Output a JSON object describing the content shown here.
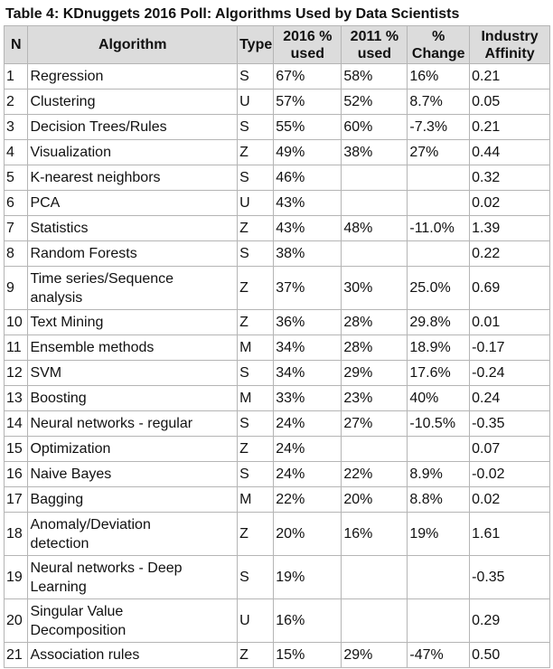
{
  "title": "Table 4: KDnuggets 2016 Poll: Algorithms Used by Data Scientists",
  "headers": {
    "n": "N",
    "algorithm": "Algorithm",
    "type": "Type",
    "used_2016": [
      "2016 %",
      "used"
    ],
    "used_2011": [
      "2011 %",
      "used"
    ],
    "change": [
      "%",
      "Change"
    ],
    "affinity": [
      "Industry",
      "Affinity"
    ]
  },
  "rows": [
    {
      "n": "1",
      "algorithm": [
        "Regression"
      ],
      "type": "S",
      "used_2016": "67%",
      "used_2011": "58%",
      "change": "16%",
      "affinity": "0.21"
    },
    {
      "n": "2",
      "algorithm": [
        "Clustering"
      ],
      "type": "U",
      "used_2016": "57%",
      "used_2011": "52%",
      "change": "8.7%",
      "affinity": "0.05"
    },
    {
      "n": "3",
      "algorithm": [
        "Decision Trees/Rules"
      ],
      "type": "S",
      "used_2016": "55%",
      "used_2011": "60%",
      "change": "-7.3%",
      "affinity": "0.21"
    },
    {
      "n": "4",
      "algorithm": [
        "Visualization"
      ],
      "type": "Z",
      "used_2016": "49%",
      "used_2011": "38%",
      "change": "27%",
      "affinity": "0.44"
    },
    {
      "n": "5",
      "algorithm": [
        "K-nearest neighbors"
      ],
      "type": "S",
      "used_2016": "46%",
      "used_2011": "",
      "change": "",
      "affinity": "0.32"
    },
    {
      "n": "6",
      "algorithm": [
        "PCA"
      ],
      "type": "U",
      "used_2016": "43%",
      "used_2011": "",
      "change": "",
      "affinity": "0.02"
    },
    {
      "n": "7",
      "algorithm": [
        "Statistics"
      ],
      "type": "Z",
      "used_2016": "43%",
      "used_2011": "48%",
      "change": "-11.0%",
      "affinity": "1.39"
    },
    {
      "n": "8",
      "algorithm": [
        "Random Forests"
      ],
      "type": "S",
      "used_2016": "38%",
      "used_2011": "",
      "change": "",
      "affinity": "0.22"
    },
    {
      "n": "9",
      "algorithm": [
        "Time series/Sequence",
        "analysis"
      ],
      "type": "Z",
      "used_2016": "37%",
      "used_2011": "30%",
      "change": "25.0%",
      "affinity": "0.69"
    },
    {
      "n": "10",
      "algorithm": [
        "Text Mining"
      ],
      "type": "Z",
      "used_2016": "36%",
      "used_2011": "28%",
      "change": "29.8%",
      "affinity": "0.01"
    },
    {
      "n": "11",
      "algorithm": [
        "Ensemble methods"
      ],
      "type": "M",
      "used_2016": "34%",
      "used_2011": "28%",
      "change": "18.9%",
      "affinity": "-0.17"
    },
    {
      "n": "12",
      "algorithm": [
        "SVM"
      ],
      "type": "S",
      "used_2016": "34%",
      "used_2011": "29%",
      "change": "17.6%",
      "affinity": "-0.24"
    },
    {
      "n": "13",
      "algorithm": [
        "Boosting"
      ],
      "type": "M",
      "used_2016": "33%",
      "used_2011": "23%",
      "change": "40%",
      "affinity": "0.24"
    },
    {
      "n": "14",
      "algorithm": [
        "Neural networks - regular"
      ],
      "type": "S",
      "used_2016": "24%",
      "used_2011": "27%",
      "change": "-10.5%",
      "affinity": "-0.35"
    },
    {
      "n": "15",
      "algorithm": [
        "Optimization"
      ],
      "type": "Z",
      "used_2016": "24%",
      "used_2011": "",
      "change": "",
      "affinity": "0.07"
    },
    {
      "n": "16",
      "algorithm": [
        "Naive Bayes"
      ],
      "type": "S",
      "used_2016": "24%",
      "used_2011": "22%",
      "change": "8.9%",
      "affinity": "-0.02"
    },
    {
      "n": "17",
      "algorithm": [
        "Bagging"
      ],
      "type": "M",
      "used_2016": "22%",
      "used_2011": "20%",
      "change": "8.8%",
      "affinity": "0.02"
    },
    {
      "n": "18",
      "algorithm": [
        "Anomaly/Deviation",
        "detection"
      ],
      "type": "Z",
      "used_2016": "20%",
      "used_2011": "16%",
      "change": "19%",
      "affinity": "1.61"
    },
    {
      "n": "19",
      "algorithm": [
        "Neural networks - Deep",
        "Learning"
      ],
      "type": "S",
      "used_2016": "19%",
      "used_2011": "",
      "change": "",
      "affinity": "-0.35"
    },
    {
      "n": "20",
      "algorithm": [
        "Singular Value",
        "Decomposition"
      ],
      "type": "U",
      "used_2016": "16%",
      "used_2011": "",
      "change": "",
      "affinity": "0.29"
    },
    {
      "n": "21",
      "algorithm": [
        "Association rules"
      ],
      "type": "Z",
      "used_2016": "15%",
      "used_2011": "29%",
      "change": "-47%",
      "affinity": "0.50"
    }
  ]
}
